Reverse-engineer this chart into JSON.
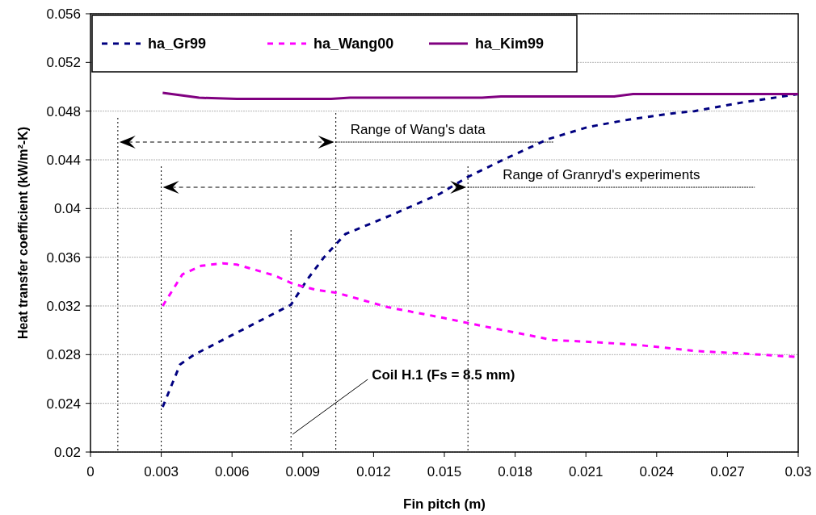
{
  "chart_data": {
    "type": "line",
    "xlabel": "Fin pitch (m)",
    "ylabel": "Heat transfer coefficient (kW/m²-K)",
    "xlim": [
      0,
      0.03
    ],
    "xticks": [
      0,
      0.003,
      0.006,
      0.009,
      0.012,
      0.015,
      0.018,
      0.021,
      0.024,
      0.027,
      0.03
    ],
    "ylim": [
      0.02,
      0.056
    ],
    "yticks": [
      0.02,
      0.024,
      0.028,
      0.032,
      0.036,
      0.04,
      0.044,
      0.048,
      0.052,
      0.056
    ],
    "grid": "y",
    "legend": "top left",
    "marker": "none",
    "series": [
      {
        "name": "ha_Gr99",
        "color": "#000080",
        "line_style": "dashed",
        "x": [
          0.00306,
          0.0038,
          0.0044,
          0.006,
          0.0076,
          0.0085,
          0.0092,
          0.0099,
          0.0108,
          0.0128,
          0.0148,
          0.016,
          0.0176,
          0.0194,
          0.0211,
          0.0228,
          0.0246,
          0.0256,
          0.0276,
          0.03
        ],
        "values": [
          0.0237,
          0.0272,
          0.028,
          0.0296,
          0.0312,
          0.0321,
          0.0342,
          0.036,
          0.0379,
          0.0395,
          0.0412,
          0.0426,
          0.0441,
          0.0457,
          0.0467,
          0.0473,
          0.0478,
          0.048,
          0.0487,
          0.0494
        ]
      },
      {
        "name": "ha_Wang00",
        "color": "#ff00ff",
        "line_style": "dashed",
        "x": [
          0.00306,
          0.0039,
          0.0047,
          0.0056,
          0.0062,
          0.0078,
          0.0086,
          0.0096,
          0.0104,
          0.0126,
          0.015,
          0.017,
          0.0196,
          0.0216,
          0.0232,
          0.0256,
          0.0276,
          0.03
        ],
        "values": [
          0.032,
          0.0346,
          0.0353,
          0.0355,
          0.0354,
          0.0345,
          0.0338,
          0.0333,
          0.0331,
          0.0319,
          0.031,
          0.0302,
          0.0292,
          0.029,
          0.0288,
          0.0283,
          0.0281,
          0.0278
        ]
      },
      {
        "name": "ha_Kim99",
        "color": "#800080",
        "line_style": "solid",
        "x": [
          0.00306,
          0.0046,
          0.0062,
          0.0102,
          0.011,
          0.0166,
          0.0174,
          0.0222,
          0.023,
          0.03
        ],
        "values": [
          0.0495,
          0.0491,
          0.049,
          0.049,
          0.0491,
          0.0491,
          0.0492,
          0.0492,
          0.0494,
          0.0494
        ]
      }
    ],
    "ref_lines": [
      {
        "axis": "x",
        "value": 0.00116,
        "line_style": "dotted",
        "color": "#000000"
      },
      {
        "axis": "x",
        "value": 0.0104,
        "label": "Range of Wang's data",
        "line_style": "dotted",
        "color": "#000000"
      },
      {
        "axis": "x",
        "value": 0.003,
        "line_style": "dotted",
        "color": "#000000"
      },
      {
        "axis": "x",
        "value": 0.016,
        "label": "Range of Granryd's experiments",
        "line_style": "dotted",
        "color": "#000000"
      },
      {
        "axis": "x",
        "value": 0.0085,
        "label": "Coil H.1 (Fs = 8.5 mm)",
        "line_style": "dotted",
        "color": "#000000"
      }
    ]
  }
}
